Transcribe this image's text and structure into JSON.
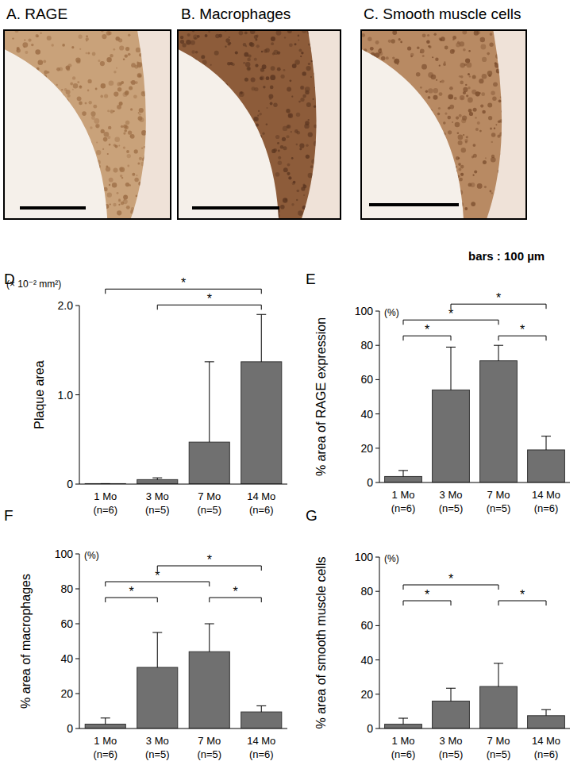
{
  "panels": [
    {
      "title": "A. RAGE"
    },
    {
      "title": "B. Macrophages"
    },
    {
      "title": "C. Smooth muscle cells"
    }
  ],
  "scale_note": "bars : 100 µm",
  "chart_data": [
    {
      "type": "bar",
      "panel": "D",
      "y_label": "Plaque area",
      "unit_label": "(× 10⁻² mm²)",
      "categories": [
        "1 Mo\n(n=6)",
        "3 Mo\n(n=5)",
        "7 Mo\n(n=5)",
        "14 Mo\n(n=6)"
      ],
      "values": [
        0.005,
        0.05,
        0.47,
        1.37
      ],
      "errors": [
        0,
        0.02,
        0.9,
        0.53
      ],
      "color": "#707070",
      "ylim": [
        0,
        2
      ],
      "yticks": [
        0,
        {
          "value": 1,
          "label": "1.0"
        },
        {
          "value": 2,
          "label": "2.0"
        }
      ],
      "significance": [
        {
          "from": 1,
          "to": 3,
          "label": "*"
        },
        {
          "from": 0,
          "to": 3,
          "label": "*"
        }
      ]
    },
    {
      "type": "bar",
      "panel": "E",
      "y_label": "% area of RAGE expression",
      "unit_label": "(%)",
      "categories": [
        "1 Mo\n(n=6)",
        "3 Mo\n(n=5)",
        "7 Mo\n(n=5)",
        "14 Mo\n(n=6)"
      ],
      "values": [
        3.5,
        54,
        71,
        19
      ],
      "errors": [
        3.5,
        25,
        9,
        8
      ],
      "color": "#707070",
      "ylim": [
        0,
        100
      ],
      "yticks": [
        0,
        20,
        40,
        60,
        80,
        100
      ],
      "significance": [
        {
          "from": 0,
          "to": 1,
          "label": "*"
        },
        {
          "from": 0,
          "to": 2,
          "label": "*"
        },
        {
          "from": 1,
          "to": 3,
          "label": "*"
        },
        {
          "from": 2,
          "to": 3,
          "label": "*"
        }
      ]
    },
    {
      "type": "bar",
      "panel": "F",
      "y_label": "% area of macrophages",
      "unit_label": "(%)",
      "categories": [
        "1 Mo\n(n=6)",
        "3 Mo\n(n=5)",
        "7 Mo\n(n=5)",
        "14 Mo\n(n=6)"
      ],
      "values": [
        2.5,
        35,
        44,
        9.5
      ],
      "errors": [
        3.5,
        20,
        16,
        3.5
      ],
      "color": "#707070",
      "ylim": [
        0,
        100
      ],
      "yticks": [
        0,
        20,
        40,
        60,
        80,
        100
      ],
      "significance": [
        {
          "from": 0,
          "to": 1,
          "label": "*"
        },
        {
          "from": 0,
          "to": 2,
          "label": "*"
        },
        {
          "from": 1,
          "to": 3,
          "label": "*"
        },
        {
          "from": 2,
          "to": 3,
          "label": "*"
        }
      ]
    },
    {
      "type": "bar",
      "panel": "G",
      "y_label": "% area of smooth muscle cells",
      "unit_label": "(%)",
      "categories": [
        "1 Mo\n(n=6)",
        "3 Mo\n(n=5)",
        "7 Mo\n(n=5)",
        "14 Mo\n(n=6)"
      ],
      "values": [
        2.5,
        16,
        24.5,
        7.5
      ],
      "errors": [
        3.5,
        7.5,
        13.5,
        3.5
      ],
      "color": "#707070",
      "ylim": [
        0,
        100
      ],
      "yticks": [
        0,
        20,
        40,
        60,
        80,
        100
      ],
      "significance": [
        {
          "from": 0,
          "to": 1,
          "label": "*"
        },
        {
          "from": 0,
          "to": 2,
          "label": "*"
        },
        {
          "from": 2,
          "to": 3,
          "label": "*"
        }
      ]
    }
  ]
}
